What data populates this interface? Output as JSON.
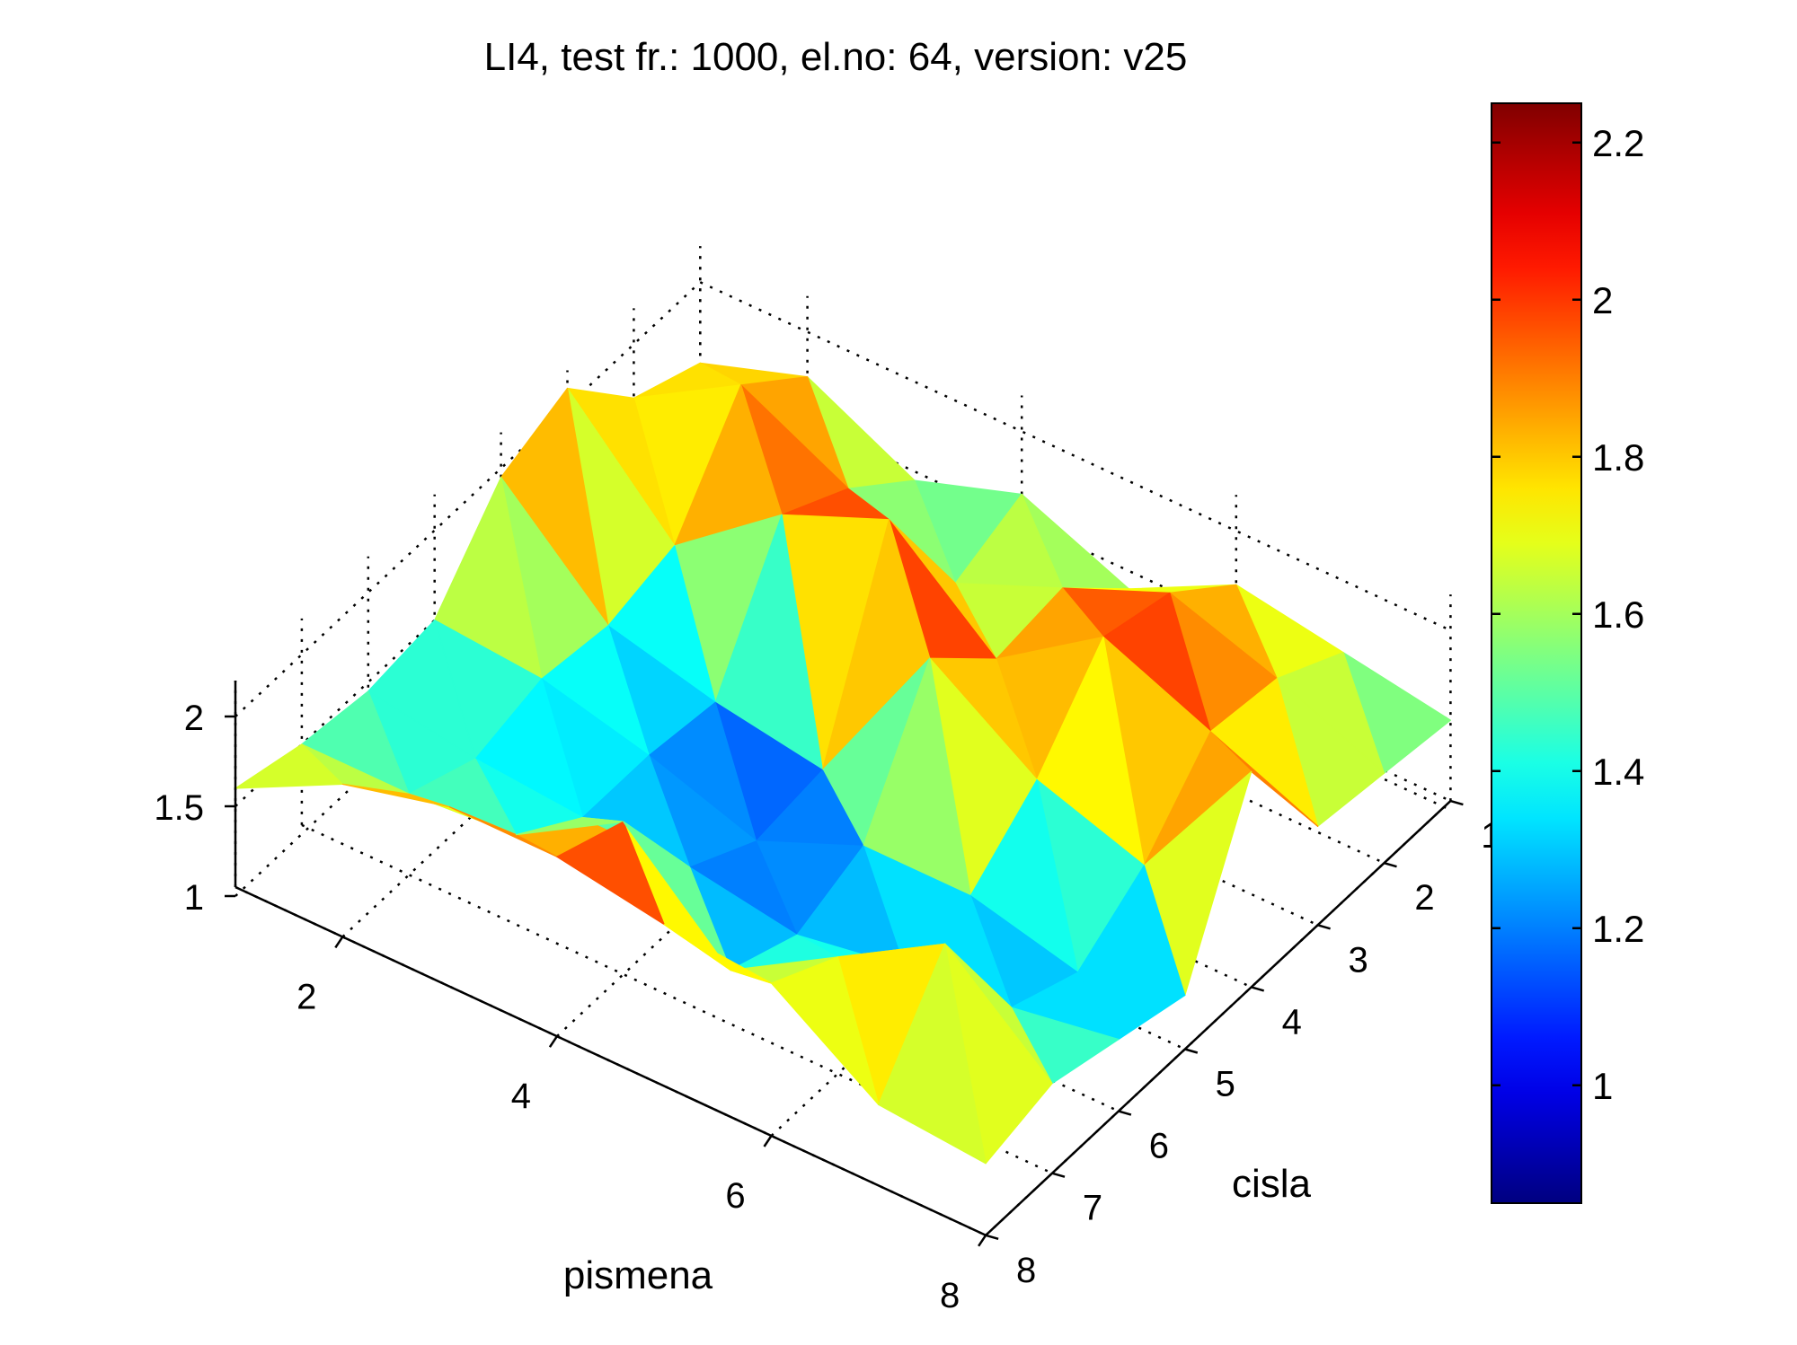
{
  "chart_data": {
    "type": "surface",
    "title": "LI4,  test fr.: 1000,  el.no: 64,  version: v25",
    "xlabel": "pismena",
    "ylabel": "cisla",
    "zlabel": "",
    "x": [
      1,
      2,
      3,
      4,
      5,
      6,
      7,
      8
    ],
    "y": [
      1,
      2,
      3,
      4,
      5,
      6,
      7,
      8
    ],
    "x_ticks": [
      2,
      4,
      6,
      8
    ],
    "y_ticks": [
      1,
      2,
      3,
      4,
      5,
      6,
      7,
      8
    ],
    "z_ticks": [
      1,
      1.5,
      2
    ],
    "xlim": [
      1,
      8
    ],
    "ylim": [
      1,
      8
    ],
    "zlim": [
      1,
      2.2
    ],
    "clim": [
      0.85,
      2.25
    ],
    "colormap": "jet",
    "grid": true,
    "colorbar": {
      "placement": "right",
      "ticks": [
        1,
        1.2,
        1.4,
        1.6,
        1.8,
        2,
        2.2
      ],
      "tick_labels": [
        "1",
        "1.2",
        "1.4",
        "1.6",
        "1.8",
        "2",
        "2.2"
      ]
    },
    "z_values": [
      [
        1.55,
        1.7,
        2.1,
        1.95,
        1.5,
        1.45,
        1.5,
        1.6
      ],
      [
        1.75,
        2.05,
        1.5,
        1.4,
        1.45,
        1.35,
        1.5,
        1.9
      ],
      [
        1.45,
        1.75,
        1.95,
        1.25,
        1.3,
        1.3,
        1.55,
        2.05
      ],
      [
        1.65,
        1.5,
        2.2,
        1.15,
        1.1,
        1.3,
        1.9,
        2.05
      ],
      [
        1.4,
        1.75,
        1.7,
        2.05,
        1.35,
        1.2,
        1.35,
        1.95
      ],
      [
        1.7,
        2.0,
        2.1,
        1.65,
        1.35,
        1.3,
        1.7,
        1.9
      ],
      [
        1.6,
        1.8,
        1.85,
        1.45,
        1.2,
        1.35,
        2.05,
        1.5
      ],
      [
        1.5,
        1.55,
        1.6,
        2.25,
        1.35,
        1.45,
        1.55,
        1.45
      ]
    ]
  }
}
